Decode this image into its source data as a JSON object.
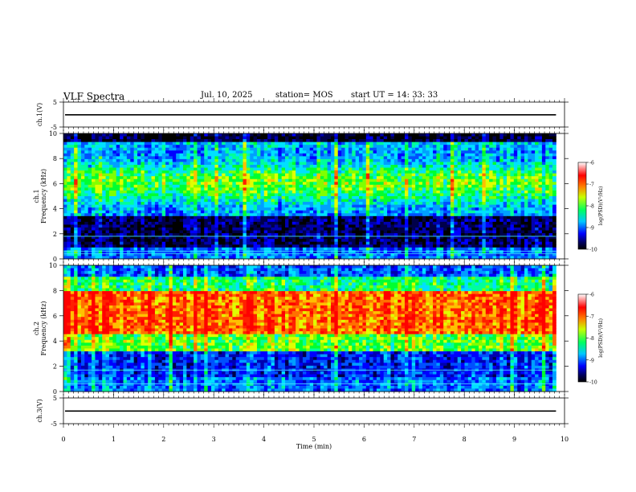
{
  "header": {
    "title": "VLF Spectra",
    "date": "Jul. 10, 2025",
    "station": "station= MOS",
    "start": "start UT =   14: 33: 33"
  },
  "chart_data": [
    {
      "type": "line",
      "title": "",
      "ylabel": "ch.1(V)",
      "ylim": [
        -5,
        5
      ],
      "yticks": [
        "5",
        "-5"
      ],
      "series": [
        {
          "values": [
            -0.1,
            -0.1
          ]
        }
      ]
    },
    {
      "type": "heatmap",
      "ylabel_line1": "ch.1",
      "ylabel_line2": "Frequency (kHz)",
      "ylim": [
        0,
        10
      ],
      "yticks": [
        "0",
        "2",
        "4",
        "6",
        "8",
        "10"
      ],
      "colorbar": {
        "label": "log(PSD)(V²/Hz)",
        "range": [
          -10,
          -6
        ],
        "ticks": [
          "-6",
          "-7",
          "-8",
          "-9",
          "-10"
        ]
      },
      "profile": {
        "low_band_khz": [
          0,
          3.5
        ],
        "high_band_khz": [
          3.5,
          9.3
        ]
      }
    },
    {
      "type": "heatmap",
      "ylabel_line1": "ch.2",
      "ylabel_line2": "Frequency (kHz)",
      "ylim": [
        0,
        10
      ],
      "yticks": [
        "0",
        "2",
        "4",
        "6",
        "8",
        "10"
      ],
      "colorbar": {
        "label": "log(PSD)(V²/Hz)",
        "range": [
          -10,
          -6
        ],
        "ticks": [
          "-6",
          "-7",
          "-8",
          "-9",
          "-10"
        ]
      },
      "profile": {
        "peak_band_khz": [
          4.5,
          7.5
        ]
      }
    },
    {
      "type": "line",
      "ylabel": "ch.3(V)",
      "ylim": [
        -5,
        5
      ],
      "yticks": [
        "5",
        "-5"
      ],
      "series": [
        {
          "values": [
            -0.1,
            -0.1
          ]
        }
      ]
    }
  ],
  "xaxis": {
    "xlabel": "Time (min)",
    "xlim": [
      0,
      10
    ],
    "xticks": [
      "0",
      "1",
      "2",
      "3",
      "4",
      "5",
      "6",
      "7",
      "8",
      "9",
      "10"
    ],
    "data_end": 9.83
  }
}
